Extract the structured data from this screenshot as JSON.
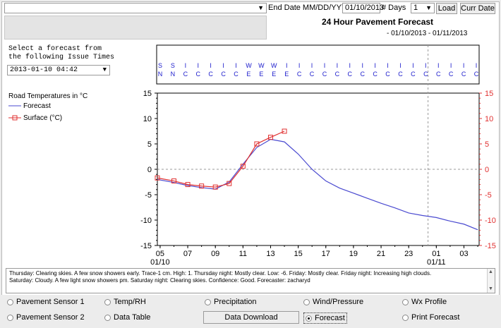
{
  "topbar": {
    "end_date_label": "End Date MM/DD/YYYY",
    "end_date_value": "01/10/2013",
    "days_label": "# Days",
    "days_value": "1",
    "load_label": "Load",
    "curr_date_label": "Curr Date"
  },
  "info_placeholder": "",
  "chart_title": "24 Hour Pavement Forecast",
  "date_range": "- 01/10/2013 - 01/11/2013",
  "select_label_1": "Select a forecast from",
  "select_label_2": "the following Issue Times",
  "issue_time": "2013-01-10 04:42",
  "legend": {
    "title": "Road Temperatures in °C",
    "forecast": "Forecast",
    "surface": "Surface (°C)"
  },
  "wind_row_top": [
    "S",
    "S",
    "I",
    "I",
    "I",
    "I",
    "I",
    "W",
    "W",
    "W",
    "I",
    "I",
    "I",
    "I",
    "I",
    "I",
    "I",
    "I",
    "I",
    "I",
    "I",
    "I",
    "I",
    "I",
    "I",
    "I"
  ],
  "wind_row_bottom": [
    "N",
    "N",
    "C",
    "C",
    "C",
    "C",
    "C",
    "E",
    "E",
    "E",
    "E",
    "C",
    "C",
    "C",
    "C",
    "C",
    "C",
    "C",
    "C",
    "C",
    "C",
    "C",
    "C",
    "C",
    "C",
    "C"
  ],
  "chart_data": {
    "type": "line",
    "x_tick_labels": [
      "05",
      "07",
      "09",
      "11",
      "13",
      "15",
      "17",
      "19",
      "21",
      "23",
      "01",
      "03"
    ],
    "x_date_labels": [
      "01/10",
      "01/11"
    ],
    "ylim": [
      -15,
      15
    ],
    "y_ticks": [
      15,
      10,
      5,
      0,
      -5,
      -10,
      -15
    ],
    "grid": false,
    "series": [
      {
        "name": "Forecast",
        "color": "#4a4ad0",
        "x": [
          4.8,
          6,
          7,
          8,
          9,
          10,
          11,
          12,
          13,
          14,
          15,
          16,
          17,
          18,
          19,
          20,
          21,
          22,
          23,
          24,
          25,
          26,
          27,
          28
        ],
        "y": [
          -2,
          -2.6,
          -3.2,
          -3.6,
          -3.9,
          -2.5,
          1,
          4.3,
          5.9,
          5.4,
          3,
          0,
          -2.3,
          -3.7,
          -4.7,
          -5.7,
          -6.7,
          -7.6,
          -8.6,
          -9.1,
          -9.5,
          -10.2,
          -10.8,
          -11.9
        ]
      },
      {
        "name": "Surface (°C)",
        "color": "#e03030",
        "x": [
          4.8,
          6,
          7,
          8,
          9,
          10,
          11,
          12,
          13,
          14
        ],
        "y": [
          -1.7,
          -2.3,
          -3,
          -3.3,
          -3.5,
          -2.8,
          0.6,
          5,
          6.3,
          7.5
        ]
      }
    ]
  },
  "forecast_text": {
    "line1": "Thursday:  Clearing skies.  A few snow showers early.  Trace-1 cm.  High: 1.  Thursday night:  Mostly clear.  Low: -6.  Friday:  Mostly clear.  Friday night:  Increasing high clouds.",
    "line2": "Saturday:  Cloudy.  A few light snow showers pm.  Saturday night:  Clearing skies.  Confidence:  Good.  Forecaster:  zacharyd"
  },
  "options": {
    "pavement1": "Pavement Sensor 1",
    "pavement2": "Pavement Sensor 2",
    "temprh": "Temp/RH",
    "datatable": "Data Table",
    "precip": "Precipitation",
    "download": "Data Download",
    "wind": "Wind/Pressure",
    "forecast": "Forecast",
    "wxprofile": "Wx Profile",
    "print": "Print Forecast"
  },
  "colors": {
    "forecast_line": "#4a4ad0",
    "surface_line": "#e03030",
    "right_axis": "#e03030"
  }
}
